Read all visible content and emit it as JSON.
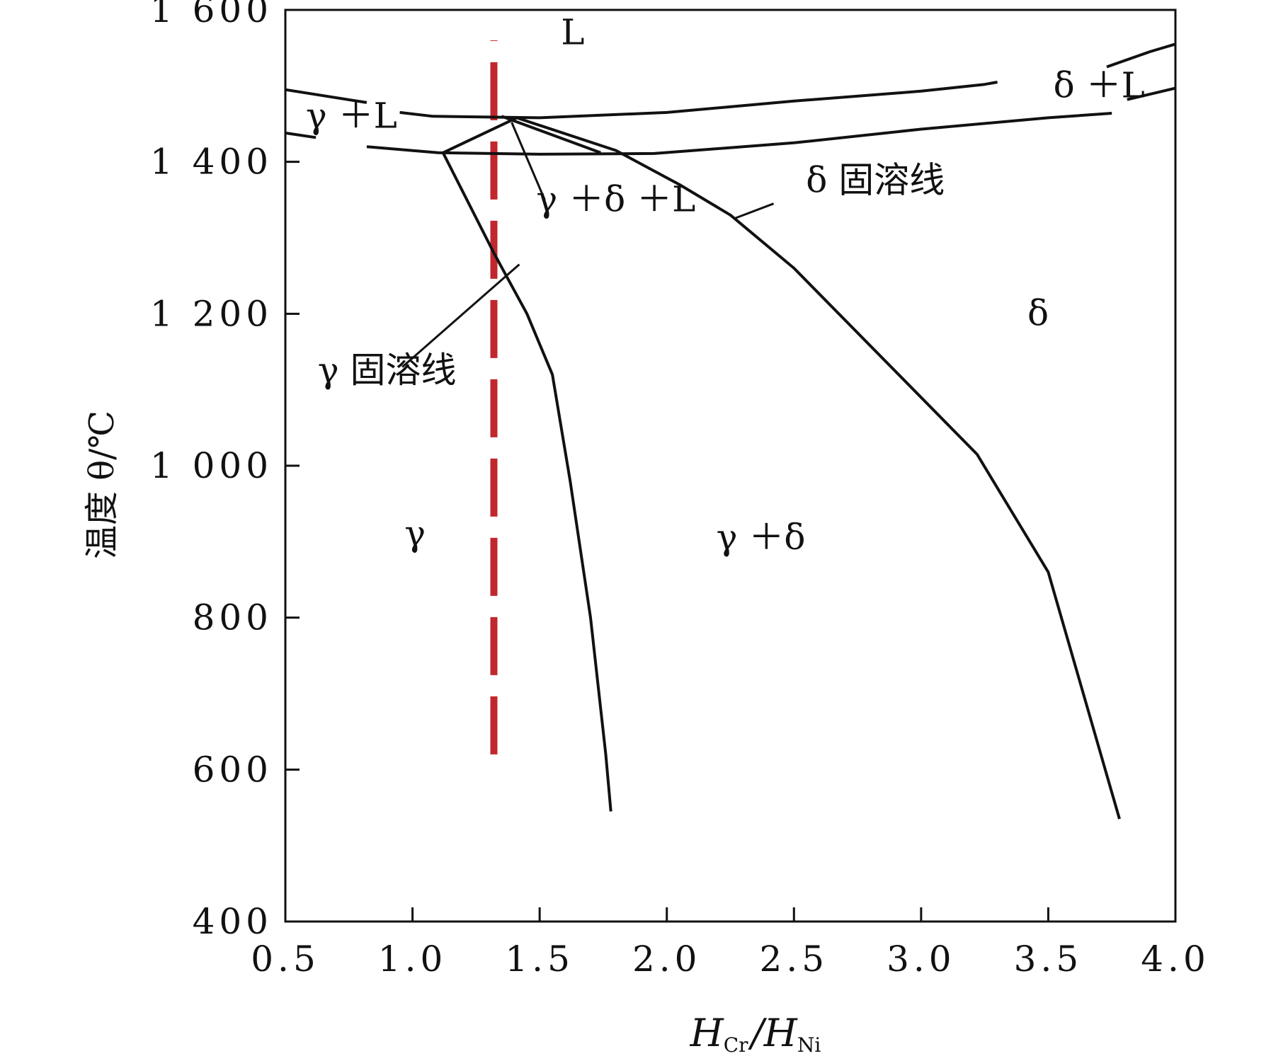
{
  "chart_data": {
    "type": "line",
    "ylabel": "温度 θ/℃",
    "xlabel": {
      "main1": "H",
      "sub1": "Cr",
      "sep": "/",
      "main2": "H",
      "sub2": "Ni"
    },
    "xlim": [
      0.5,
      4.0
    ],
    "ylim": [
      400,
      1600
    ],
    "x_ticks": [
      0.5,
      1.0,
      1.5,
      2.0,
      2.5,
      3.0,
      3.5,
      4.0
    ],
    "x_tick_labels": [
      "0.5",
      "1.0",
      "1.5",
      "2.0",
      "2.5",
      "3.0",
      "3.5",
      "4.0"
    ],
    "y_ticks": [
      400,
      600,
      800,
      1000,
      1200,
      1400,
      1600
    ],
    "y_tick_labels": [
      "400",
      "600",
      "800",
      "1 000",
      "1 200",
      "1 400",
      "1 600"
    ],
    "reference_line": {
      "x": 1.32,
      "y_range": [
        620,
        1560
      ],
      "style": "dashed",
      "color": "#c0282d"
    },
    "lines": [
      {
        "points": [
          [
            0.5,
            1495
          ],
          [
            0.82,
            1478
          ]
        ]
      },
      {
        "points": [
          [
            0.95,
            1465
          ],
          [
            1.08,
            1460
          ],
          [
            1.5,
            1458
          ],
          [
            2.0,
            1465
          ],
          [
            2.5,
            1480
          ],
          [
            3.0,
            1493
          ],
          [
            3.25,
            1502
          ],
          [
            3.3,
            1505
          ]
        ]
      },
      {
        "points": [
          [
            3.73,
            1525
          ],
          [
            3.9,
            1545
          ],
          [
            4.0,
            1555
          ]
        ]
      },
      {
        "points": [
          [
            0.5,
            1438
          ],
          [
            0.62,
            1432
          ]
        ]
      },
      {
        "points": [
          [
            0.82,
            1420
          ],
          [
            1.1,
            1412
          ],
          [
            1.5,
            1410
          ],
          [
            1.95,
            1411
          ],
          [
            2.5,
            1425
          ],
          [
            3.0,
            1443
          ],
          [
            3.5,
            1458
          ],
          [
            3.75,
            1464
          ]
        ]
      },
      {
        "points": [
          [
            3.81,
            1482
          ],
          [
            4.0,
            1497
          ]
        ]
      },
      {
        "points": [
          [
            1.12,
            1412
          ],
          [
            1.41,
            1458
          ],
          [
            1.8,
            1415
          ],
          [
            2.05,
            1370
          ],
          [
            2.25,
            1330
          ],
          [
            2.5,
            1260
          ],
          [
            3.22,
            1015
          ],
          [
            3.5,
            860
          ],
          [
            3.78,
            535
          ]
        ]
      },
      {
        "points": [
          [
            1.12,
            1412
          ],
          [
            1.32,
            1280
          ],
          [
            1.45,
            1200
          ],
          [
            1.55,
            1120
          ],
          [
            1.62,
            980
          ],
          [
            1.7,
            800
          ],
          [
            1.76,
            620
          ],
          [
            1.78,
            545
          ]
        ]
      },
      {
        "points": [
          [
            1.35,
            1460
          ],
          [
            1.74,
            1412
          ]
        ]
      }
    ],
    "leaders": [
      {
        "from": [
          1.39,
          1452
        ],
        "to": [
          1.52,
          1350
        ]
      },
      {
        "from": [
          2.27,
          1326
        ],
        "to": [
          2.42,
          1345
        ]
      },
      {
        "from": [
          0.96,
          1130
        ],
        "to": [
          1.42,
          1265
        ]
      }
    ],
    "annotations": [
      {
        "text": "L",
        "x": 1.63,
        "y": 1555
      },
      {
        "text": "δ ＋L",
        "x": 3.7,
        "y": 1485
      },
      {
        "text": "γ ＋L",
        "x": 0.76,
        "y": 1445
      },
      {
        "text": "γ ＋δ ＋L",
        "x": 1.8,
        "y": 1335
      },
      {
        "text": "δ 固溶线",
        "x": 2.82,
        "y": 1360
      },
      {
        "text": "γ 固溶线",
        "x": 0.9,
        "y": 1110
      },
      {
        "text": "δ",
        "x": 3.46,
        "y": 1185
      },
      {
        "text": "γ",
        "x": 1.01,
        "y": 895
      },
      {
        "text": "γ ＋δ",
        "x": 2.37,
        "y": 890
      }
    ]
  }
}
